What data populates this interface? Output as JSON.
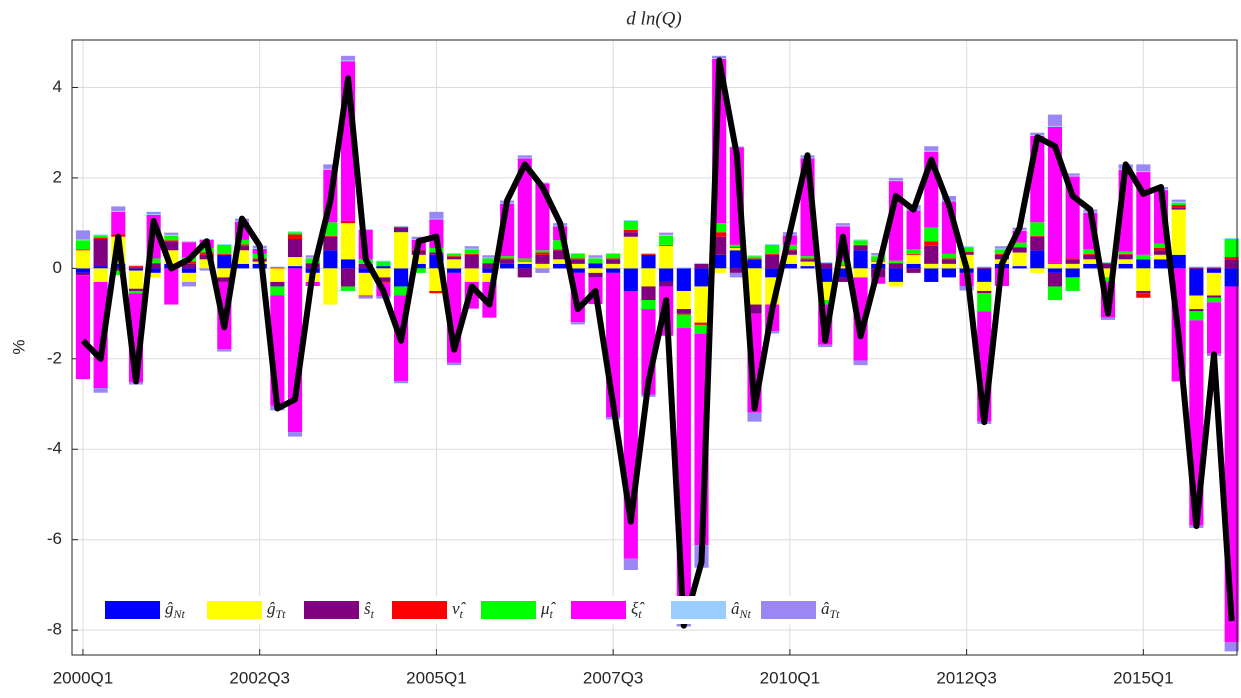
{
  "chart_data": {
    "type": "bar",
    "stacked": true,
    "title": "d ln(Q)",
    "y_label": "%",
    "categories": [
      "2000Q1",
      null,
      null,
      null,
      null,
      null,
      null,
      null,
      null,
      null,
      "2002Q3",
      null,
      null,
      null,
      null,
      null,
      null,
      null,
      null,
      null,
      "2005Q1",
      null,
      null,
      null,
      null,
      null,
      null,
      null,
      null,
      null,
      "2007Q3",
      null,
      null,
      null,
      null,
      null,
      null,
      null,
      null,
      null,
      "2010Q1",
      null,
      null,
      null,
      null,
      null,
      null,
      null,
      null,
      null,
      "2012Q3",
      null,
      null,
      null,
      null,
      null,
      null,
      null,
      null,
      null,
      "2015Q1",
      null,
      null,
      null,
      null,
      null
    ],
    "ylim": [
      -8.55,
      5.05
    ],
    "yticks": [
      -8,
      -6,
      -4,
      -2,
      0,
      2,
      4
    ],
    "grid": true,
    "legend": "lower left",
    "series": [
      {
        "name": "ĝ",
        "subscript": "Nt",
        "color": "#0000ff",
        "values": [
          -0.1,
          0.05,
          0.1,
          -0.05,
          -0.1,
          0.1,
          -0.1,
          0.0,
          0.3,
          0.1,
          0.1,
          0.0,
          0.05,
          -0.1,
          0.4,
          0.2,
          -0.1,
          0.05,
          -0.4,
          0.1,
          0.3,
          -0.1,
          0.0,
          -0.1,
          0.1,
          0.1,
          0.0,
          0.1,
          -0.1,
          0.1,
          -0.1,
          -0.5,
          0.3,
          -0.3,
          -0.5,
          -0.4,
          0.3,
          0.4,
          0.2,
          -0.2,
          0.1,
          0.05,
          -0.3,
          -0.2,
          0.4,
          0.1,
          -0.3,
          0.1,
          -0.3,
          -0.2,
          -0.1,
          -0.3,
          0.1,
          0.05,
          0.4,
          -0.1,
          -0.2,
          0.1,
          0.0,
          0.1,
          0.2,
          0.2,
          0.3,
          -0.6,
          -0.1,
          -0.4
        ]
      },
      {
        "name": "ĝ",
        "subscript": "Tt",
        "color": "#ffff00",
        "values": [
          0.4,
          -0.3,
          0.6,
          -0.4,
          -0.1,
          0.3,
          -0.2,
          0.2,
          -0.2,
          0.3,
          0.05,
          -0.3,
          0.2,
          -0.2,
          -0.8,
          0.8,
          -0.5,
          -0.2,
          0.8,
          0.2,
          -0.5,
          0.2,
          -0.3,
          -0.2,
          0.0,
          0.05,
          0.1,
          0.1,
          0.1,
          -0.1,
          0.1,
          0.7,
          -0.4,
          0.5,
          -0.4,
          -0.8,
          -0.1,
          0.05,
          -0.8,
          -0.6,
          0.2,
          0.1,
          -0.4,
          0.05,
          -0.2,
          0.05,
          -0.1,
          0.2,
          0.1,
          0.1,
          0.3,
          -0.2,
          0.1,
          0.3,
          -0.1,
          0.1,
          0.1,
          0.1,
          -0.2,
          0.1,
          -0.5,
          0.1,
          1.0,
          -0.3,
          -0.5,
          0.0
        ]
      },
      {
        "name": "ŝ",
        "subscript": "t",
        "color": "#800080",
        "values": [
          -0.05,
          0.6,
          -0.05,
          -0.05,
          0.1,
          0.2,
          0.1,
          0.1,
          -0.1,
          0.1,
          0.05,
          -0.1,
          0.4,
          0.1,
          0.3,
          -0.4,
          0.1,
          -0.1,
          0.1,
          0.1,
          0.05,
          0.05,
          0.3,
          0.1,
          0.1,
          -0.2,
          0.2,
          0.2,
          0.1,
          -0.1,
          0.1,
          0.1,
          -0.3,
          -0.1,
          -0.1,
          0.1,
          0.4,
          -0.1,
          -0.2,
          0.3,
          0.1,
          0.05,
          0.1,
          -0.1,
          0.1,
          -0.2,
          0.1,
          -0.1,
          0.4,
          0.1,
          0.05,
          -0.05,
          0.1,
          0.1,
          0.3,
          -0.3,
          0.1,
          0.1,
          0.1,
          0.1,
          -0.05,
          0.1,
          0.05,
          -0.05,
          -0.05,
          0.2
        ]
      },
      {
        "name": "ν̂",
        "subscript": "t",
        "color": "#ff0000",
        "values": [
          0.02,
          0.03,
          0.05,
          0.05,
          0.02,
          0.02,
          0.05,
          0.05,
          0.02,
          0.03,
          0.02,
          0.02,
          0.1,
          0.02,
          0.02,
          0.05,
          -0.02,
          -0.02,
          0.02,
          0.02,
          -0.05,
          0.02,
          0.02,
          0.02,
          0.02,
          0.02,
          0.05,
          0.02,
          0.02,
          0.02,
          0.02,
          0.05,
          0.02,
          0.02,
          -0.02,
          -0.05,
          0.1,
          0.02,
          0.02,
          0.02,
          0.02,
          0.02,
          0.02,
          0.02,
          0.02,
          0.02,
          0.02,
          0.02,
          0.1,
          0.02,
          0.02,
          0.02,
          0.02,
          0.02,
          0.02,
          0.02,
          0.02,
          0.02,
          0.02,
          0.02,
          -0.1,
          0.05,
          0.05,
          0.02,
          0.02,
          0.05
        ]
      },
      {
        "name": "μ̂",
        "subscript": "t",
        "color": "#00ff00",
        "values": [
          0.2,
          0.05,
          -0.1,
          -0.05,
          0.1,
          0.1,
          0.1,
          0.1,
          0.2,
          0.1,
          0.1,
          -0.2,
          0.05,
          0.1,
          0.3,
          -0.1,
          0.1,
          0.1,
          -0.2,
          -0.1,
          0.1,
          0.05,
          0.1,
          0.1,
          0.05,
          0.05,
          0.05,
          0.2,
          0.1,
          0.1,
          0.1,
          0.2,
          -0.2,
          0.2,
          -0.3,
          -0.2,
          0.2,
          0.05,
          0.05,
          0.2,
          0.1,
          0.05,
          -0.1,
          0.1,
          0.1,
          0.1,
          0.05,
          0.1,
          0.3,
          0.1,
          0.1,
          -0.4,
          0.1,
          0.1,
          0.3,
          -0.3,
          -0.3,
          0.1,
          -0.1,
          0.05,
          0.1,
          0.1,
          0.05,
          -0.2,
          -0.1,
          0.4
        ]
      },
      {
        "name": "ξ̂",
        "subscript": "t",
        "color": "#ff00ff",
        "values": [
          -2.3,
          -2.35,
          0.5,
          -1.97,
          0.96,
          -0.8,
          0.33,
          0.18,
          -1.49,
          0.4,
          0.11,
          -2.44,
          -3.62,
          -0.09,
          1.16,
          3.53,
          0.65,
          -0.3,
          -1.89,
          0.21,
          0.63,
          -1.99,
          -0.59,
          -0.79,
          1.16,
          2.21,
          1.48,
          0.31,
          -1.09,
          -0.59,
          -3.19,
          -5.92,
          -1.89,
          -1.09,
          -6.3,
          -4.67,
          3.63,
          2.16,
          -2.19,
          -0.59,
          0.21,
          2.16,
          -0.89,
          0.76,
          -1.84,
          -0.14,
          1.76,
          0.86,
          1.68,
          1.16,
          -0.29,
          -2.44,
          -0.39,
          0.26,
          1.91,
          3.01,
          1.81,
          0.81,
          -0.79,
          1.81,
          1.83,
          1.18,
          -2.5,
          -4.54,
          -1.14,
          -7.87
        ]
      },
      {
        "name": "â",
        "subscript": "Nt",
        "color": "#99ccff",
        "values": [
          0.02,
          0.02,
          0.02,
          0.02,
          0.02,
          0.02,
          0.02,
          0.02,
          0.02,
          0.02,
          0.02,
          0.02,
          0.02,
          0.02,
          0.02,
          0.02,
          0.02,
          0.02,
          0.02,
          0.02,
          0.02,
          0.02,
          0.02,
          0.02,
          0.02,
          0.02,
          0.02,
          0.02,
          0.02,
          0.02,
          0.02,
          0.02,
          0.02,
          0.02,
          0.02,
          0.02,
          0.02,
          0.02,
          0.02,
          0.02,
          0.02,
          0.02,
          0.02,
          0.02,
          0.02,
          0.02,
          0.02,
          0.02,
          0.02,
          0.02,
          0.02,
          0.02,
          0.02,
          0.02,
          0.02,
          0.02,
          0.02,
          0.02,
          0.02,
          0.02,
          0.02,
          0.02,
          0.02,
          0.02,
          0.02,
          0.02
        ]
      },
      {
        "name": "â",
        "subscript": "Tt",
        "color": "#9a87f5",
        "values": [
          0.2,
          -0.1,
          0.1,
          -0.05,
          0.05,
          0.05,
          -0.1,
          -0.05,
          -0.05,
          0.05,
          0.05,
          -0.1,
          -0.1,
          0.05,
          0.1,
          0.1,
          -0.05,
          -0.05,
          -0.05,
          0.05,
          0.15,
          -0.05,
          0.05,
          0.05,
          0.05,
          0.05,
          -0.1,
          0.05,
          -0.05,
          0.05,
          -0.05,
          -0.25,
          -0.05,
          0.05,
          -0.3,
          -0.5,
          0.05,
          -0.1,
          -0.2,
          -0.05,
          0.05,
          0.05,
          -0.05,
          0.05,
          -0.1,
          0.05,
          0.05,
          0.1,
          0.1,
          0.1,
          -0.1,
          -0.05,
          0.05,
          0.05,
          0.05,
          0.25,
          0.05,
          0.05,
          -0.05,
          0.1,
          0.15,
          0.05,
          0.05,
          -0.05,
          -0.05,
          -0.2
        ]
      }
    ],
    "line": {
      "color": "#000000",
      "values": [
        -1.6,
        -2.0,
        0.7,
        -2.5,
        1.05,
        0.0,
        0.2,
        0.6,
        -1.3,
        1.1,
        0.5,
        -3.1,
        -2.9,
        -0.1,
        1.5,
        4.2,
        0.2,
        -0.5,
        -1.6,
        0.6,
        0.7,
        -1.8,
        -0.4,
        -0.8,
        1.5,
        2.3,
        1.8,
        1.0,
        -0.9,
        -0.5,
        -3.0,
        -5.6,
        -2.5,
        -0.7,
        -7.9,
        -6.5,
        4.6,
        2.5,
        -3.1,
        -0.9,
        0.8,
        2.5,
        -1.6,
        0.7,
        -1.5,
        0.0,
        1.6,
        1.3,
        2.4,
        1.4,
        0.0,
        -3.4,
        0.1,
        0.9,
        2.9,
        2.7,
        1.6,
        1.3,
        -1.0,
        2.3,
        1.65,
        1.8,
        -1.5,
        -5.7,
        -1.9,
        -7.8
      ]
    }
  }
}
